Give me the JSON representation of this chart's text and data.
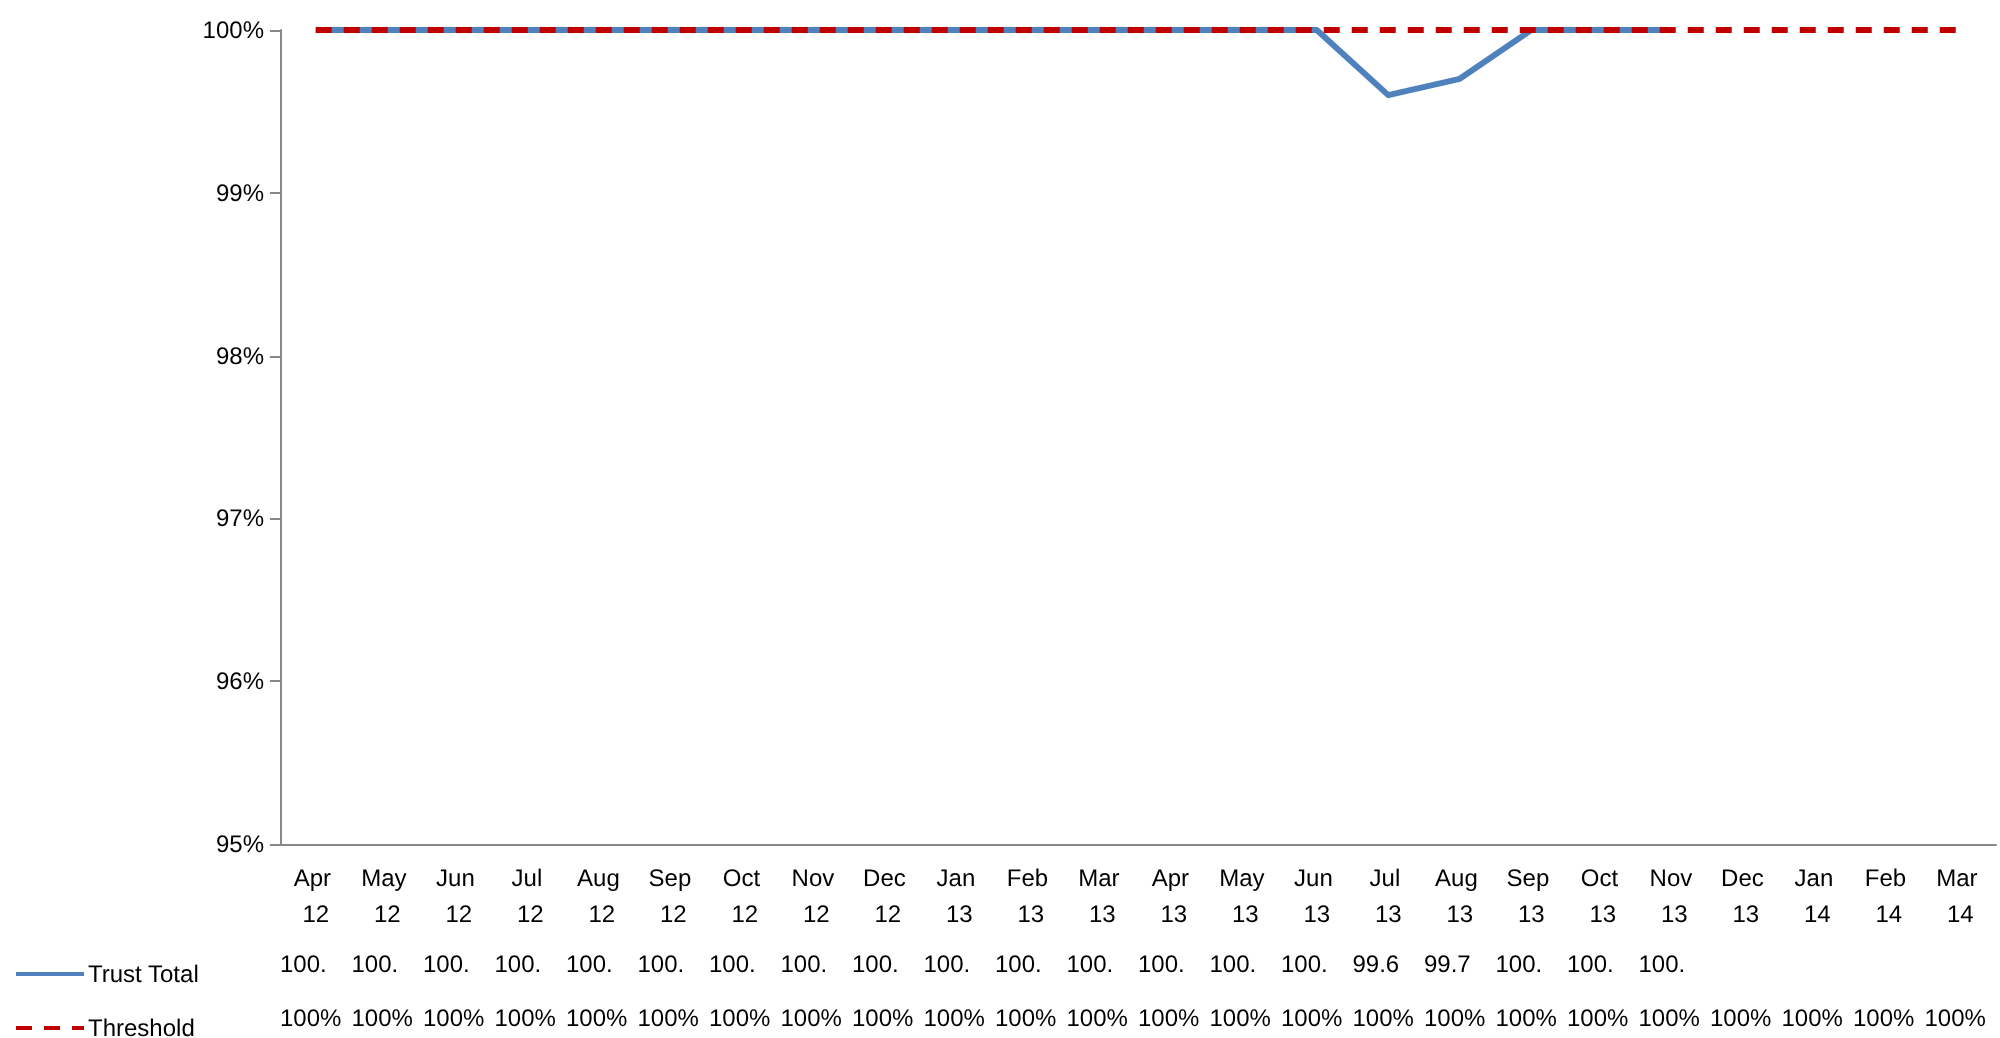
{
  "chart_data": {
    "type": "line",
    "categories": [
      "Apr 12",
      "May 12",
      "Jun 12",
      "Jul 12",
      "Aug 12",
      "Sep 12",
      "Oct 12",
      "Nov 12",
      "Dec 12",
      "Jan 13",
      "Feb 13",
      "Mar 13",
      "Apr 13",
      "May 13",
      "Jun 13",
      "Jul 13",
      "Aug 13",
      "Sep 13",
      "Oct 13",
      "Nov 13",
      "Dec 13",
      "Jan 14",
      "Feb 14",
      "Mar 14"
    ],
    "series": [
      {
        "name": "Trust Total",
        "color": "#4f81bd",
        "line_style": "solid",
        "values": [
          100,
          100,
          100,
          100,
          100,
          100,
          100,
          100,
          100,
          100,
          100,
          100,
          100,
          100,
          100,
          99.6,
          99.7,
          100,
          100,
          100,
          null,
          null,
          null,
          null
        ],
        "value_labels": [
          "100.",
          "100.",
          "100.",
          "100.",
          "100.",
          "100.",
          "100.",
          "100.",
          "100.",
          "100.",
          "100.",
          "100.",
          "100.",
          "100.",
          "100.",
          "99.6",
          "99.7",
          "100.",
          "100.",
          "100.",
          null,
          null,
          null,
          null
        ]
      },
      {
        "name": "Threshold",
        "color": "#c00000",
        "line_style": "dashed",
        "values": [
          100,
          100,
          100,
          100,
          100,
          100,
          100,
          100,
          100,
          100,
          100,
          100,
          100,
          100,
          100,
          100,
          100,
          100,
          100,
          100,
          100,
          100,
          100,
          100
        ],
        "value_labels": [
          "100%",
          "100%",
          "100%",
          "100%",
          "100%",
          "100%",
          "100%",
          "100%",
          "100%",
          "100%",
          "100%",
          "100%",
          "100%",
          "100%",
          "100%",
          "100%",
          "100%",
          "100%",
          "100%",
          "100%",
          "100%",
          "100%",
          "100%",
          "100%"
        ]
      }
    ],
    "ylim": [
      95,
      100
    ],
    "yticks": [
      {
        "value": 95,
        "label": "95%"
      },
      {
        "value": 96,
        "label": "96%"
      },
      {
        "value": 97,
        "label": "97%"
      },
      {
        "value": 98,
        "label": "98%"
      },
      {
        "value": 99,
        "label": "99%"
      },
      {
        "value": 100,
        "label": "100%"
      }
    ],
    "grid": false,
    "legend": "bottom left",
    "marker": "none"
  }
}
